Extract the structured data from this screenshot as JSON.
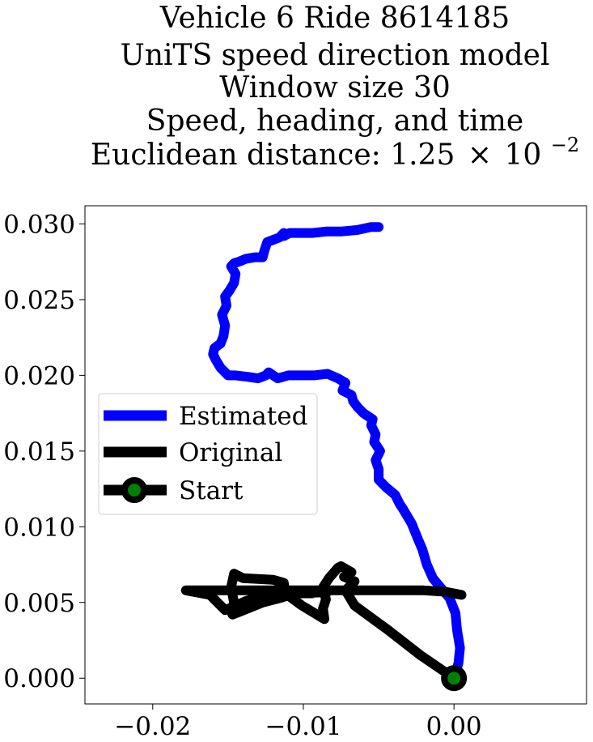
{
  "chart_data": {
    "type": "line",
    "title_lines": [
      "Vehicle 6 Ride 8614185",
      "UniTS speed direction model",
      "Window size 30",
      "Speed, heading, and time"
    ],
    "title_last_prefix": "Euclidean distance: 1.25",
    "title_last_times": "×",
    "title_last_base": "10",
    "title_last_exp": "−2",
    "xlabel": "",
    "ylabel": "",
    "xlim": [
      -0.0245,
      0.0088
    ],
    "ylim": [
      -0.0017,
      0.0312
    ],
    "xticks": [
      -0.02,
      -0.01,
      0.0
    ],
    "xtick_labels": [
      "−0.02",
      "−0.01",
      "0.00"
    ],
    "yticks": [
      0.0,
      0.005,
      0.01,
      0.015,
      0.02,
      0.025,
      0.03
    ],
    "ytick_labels": [
      "0.000",
      "0.005",
      "0.010",
      "0.015",
      "0.020",
      "0.025",
      "0.030"
    ],
    "legend_position": "center-left",
    "legend": [
      "Estimated",
      "Original",
      "Start"
    ],
    "colors": {
      "estimated": "#0000ff",
      "original": "#000000",
      "start_marker": "#008000"
    },
    "series": [
      {
        "name": "Estimated",
        "x": [
          0.0,
          0.0003,
          0.0004,
          0.0002,
          0.0001,
          -0.0003,
          -0.0009,
          -0.0014,
          -0.0018,
          -0.0021,
          -0.0024,
          -0.0026,
          -0.0028,
          -0.0031,
          -0.0034,
          -0.0036,
          -0.0039,
          -0.0045,
          -0.005,
          -0.005,
          -0.0052,
          -0.0049,
          -0.0053,
          -0.0052,
          -0.0055,
          -0.0054,
          -0.006,
          -0.0064,
          -0.0067,
          -0.0068,
          -0.0074,
          -0.0072,
          -0.0077,
          -0.0084,
          -0.0093,
          -0.01,
          -0.011,
          -0.0117,
          -0.012,
          -0.0123,
          -0.0125,
          -0.013,
          -0.0137,
          -0.0145,
          -0.015,
          -0.0155,
          -0.0158,
          -0.016,
          -0.0159,
          -0.0155,
          -0.0153,
          -0.0152,
          -0.0154,
          -0.0151,
          -0.0152,
          -0.0149,
          -0.0146,
          -0.0145,
          -0.0148,
          -0.0146,
          -0.0143,
          -0.0138,
          -0.0132,
          -0.0127,
          -0.0126,
          -0.0124,
          -0.0116,
          -0.0113,
          -0.0113,
          -0.0109,
          -0.0103,
          -0.0094,
          -0.0085,
          -0.0075,
          -0.0064,
          -0.0055,
          -0.005
        ],
        "y": [
          0.0,
          0.001,
          0.002,
          0.0032,
          0.0043,
          0.0053,
          0.006,
          0.0066,
          0.0075,
          0.0085,
          0.0092,
          0.0097,
          0.0102,
          0.0107,
          0.0112,
          0.0115,
          0.0121,
          0.0126,
          0.0131,
          0.0138,
          0.0144,
          0.015,
          0.0156,
          0.0161,
          0.0167,
          0.0171,
          0.0175,
          0.0179,
          0.0183,
          0.0187,
          0.019,
          0.0195,
          0.0198,
          0.0201,
          0.02,
          0.02,
          0.02,
          0.0198,
          0.02,
          0.0202,
          0.02,
          0.0198,
          0.0199,
          0.02,
          0.02,
          0.0205,
          0.021,
          0.0214,
          0.0218,
          0.0221,
          0.0226,
          0.0233,
          0.024,
          0.0246,
          0.0252,
          0.0256,
          0.0261,
          0.0267,
          0.0272,
          0.0274,
          0.0275,
          0.0277,
          0.0278,
          0.0278,
          0.0282,
          0.0288,
          0.0291,
          0.0294,
          0.0292,
          0.0294,
          0.0294,
          0.0294,
          0.0295,
          0.0295,
          0.0296,
          0.0298,
          0.0298
        ]
      },
      {
        "name": "Original",
        "x": [
          0.0,
          -0.0022,
          -0.0044,
          -0.0066,
          -0.0072,
          -0.0066,
          -0.0073,
          -0.0068,
          -0.0075,
          -0.0077,
          -0.0083,
          -0.0087,
          -0.0085,
          -0.0087,
          -0.0086,
          -0.0091,
          -0.0101,
          -0.0112,
          -0.0113,
          -0.012,
          -0.014,
          -0.0146,
          -0.0148,
          -0.0146,
          -0.0148,
          -0.0147,
          -0.0142,
          -0.0127,
          -0.0115,
          -0.0112,
          -0.0113,
          -0.0112,
          -0.0109,
          -0.0094,
          -0.009,
          -0.0086,
          -0.0085,
          -0.0084,
          -0.0086,
          -0.0098,
          -0.0108,
          -0.0124,
          -0.0138,
          -0.0147,
          -0.0152,
          -0.0162,
          -0.0178,
          -0.011,
          -0.006,
          -0.002,
          -0.0005,
          0.0005
        ],
        "y": [
          0.0,
          0.0015,
          0.0032,
          0.0048,
          0.0058,
          0.0064,
          0.0067,
          0.007,
          0.0074,
          0.0073,
          0.0066,
          0.006,
          0.0052,
          0.0046,
          0.0039,
          0.0042,
          0.0048,
          0.0056,
          0.0063,
          0.0065,
          0.0066,
          0.0069,
          0.006,
          0.005,
          0.0044,
          0.0042,
          0.0044,
          0.005,
          0.0053,
          0.0054,
          0.0055,
          0.0056,
          0.0056,
          0.0056,
          0.0057,
          0.0057,
          0.0057,
          0.0057,
          0.0057,
          0.0056,
          0.0058,
          0.0055,
          0.0051,
          0.0047,
          0.0045,
          0.0055,
          0.0058,
          0.0058,
          0.0058,
          0.0058,
          0.0057,
          0.0055
        ]
      },
      {
        "name": "Start",
        "x": [
          0.0
        ],
        "y": [
          0.0
        ]
      }
    ]
  }
}
